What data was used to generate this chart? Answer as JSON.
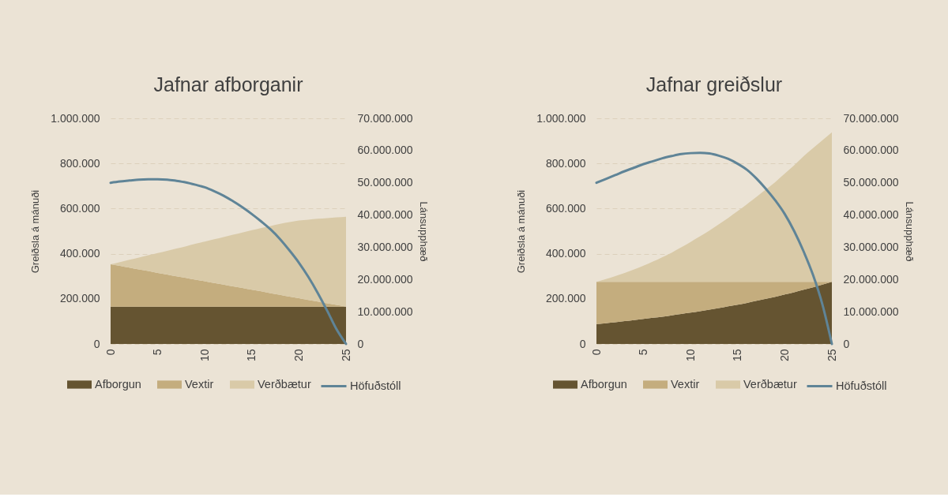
{
  "chart_data": [
    {
      "type": "area",
      "title": "Jafnar afborganir",
      "ylabel": "Greiðsla á mánuði",
      "y2label": "Lánsupphæð",
      "stacked": true,
      "x": [
        0,
        1,
        2,
        3,
        4,
        5,
        6,
        7,
        8,
        9,
        10,
        11,
        12,
        13,
        14,
        15,
        16,
        17,
        18,
        19,
        20,
        21,
        22,
        23,
        24,
        25
      ],
      "series": [
        {
          "name": "Afborgun",
          "color": "#655431",
          "values": [
            165000,
            165000,
            165000,
            165000,
            165000,
            165000,
            165000,
            165000,
            165000,
            165000,
            165000,
            165000,
            165000,
            165000,
            165000,
            165000,
            165000,
            165000,
            165000,
            165000,
            165000,
            165000,
            165000,
            165000,
            165000,
            165000
          ]
        },
        {
          "name": "Vextir",
          "color": "#c4ad7e",
          "values": [
            188000,
            181000,
            173000,
            165000,
            158000,
            150000,
            143000,
            135000,
            128000,
            120000,
            113000,
            105000,
            98000,
            90000,
            83000,
            75000,
            68000,
            60000,
            53000,
            45000,
            38000,
            30000,
            23000,
            15000,
            8000,
            0
          ]
        },
        {
          "name": "Verðbætur",
          "color": "#d9caa8",
          "values": [
            0,
            17000,
            35000,
            53000,
            70000,
            88000,
            105000,
            123000,
            140000,
            159000,
            176000,
            194000,
            211000,
            229000,
            246000,
            264000,
            281000,
            298000,
            314000,
            330000,
            344000,
            356000,
            367000,
            378000,
            388000,
            399000
          ]
        },
        {
          "name": "Höfuðstóll",
          "type": "line",
          "axis": "y2",
          "color": "#5f8497",
          "values": [
            50000000,
            50400000,
            50700000,
            51000000,
            51100000,
            51100000,
            51000000,
            50600000,
            50100000,
            49400000,
            48600000,
            47400000,
            46000000,
            44300000,
            42400000,
            40300000,
            38000000,
            35500000,
            32500000,
            29000000,
            25200000,
            20800000,
            15800000,
            10300000,
            4500000,
            0
          ]
        }
      ],
      "xlim": [
        0,
        25
      ],
      "xticks": [
        0,
        5,
        10,
        15,
        20,
        25
      ],
      "ylim": [
        0,
        1000000
      ],
      "yticks": [
        0,
        {
          "value": 200000,
          "label": "200.000"
        },
        {
          "value": 400000,
          "label": "400.000"
        },
        {
          "value": 600000,
          "label": "600.000"
        },
        {
          "value": 800000,
          "label": "800.000"
        },
        {
          "value": 1000000,
          "label": "1.000.000"
        }
      ],
      "y2lim": [
        0,
        70000000
      ],
      "y2ticks": [
        0,
        {
          "value": 10000000,
          "label": "10.000.000"
        },
        {
          "value": 20000000,
          "label": "20.000.000"
        },
        {
          "value": 30000000,
          "label": "30.000.000"
        },
        {
          "value": 40000000,
          "label": "40.000.000"
        },
        {
          "value": 50000000,
          "label": "50.000.000"
        },
        {
          "value": 60000000,
          "label": "60.000.000"
        },
        {
          "value": 70000000,
          "label": "70.000.000"
        }
      ],
      "grid": "y",
      "legend": "bottom"
    },
    {
      "type": "area",
      "title": "Jafnar greiðslur",
      "ylabel": "Greiðsla á mánuði",
      "y2label": "Lánsupphæð",
      "stacked": true,
      "x": [
        0,
        1,
        2,
        3,
        4,
        5,
        6,
        7,
        8,
        9,
        10,
        11,
        12,
        13,
        14,
        15,
        16,
        17,
        18,
        19,
        20,
        21,
        22,
        23,
        24,
        25
      ],
      "series": [
        {
          "name": "Afborgun",
          "color": "#655431",
          "values": [
            88000,
            92000,
            96000,
            101000,
            106000,
            111000,
            116000,
            121000,
            127000,
            133000,
            139000,
            145000,
            152000,
            159000,
            167000,
            174000,
            182000,
            191000,
            200000,
            209000,
            219000,
            229000,
            240000,
            251000,
            263000,
            275000
          ]
        },
        {
          "name": "Vextir",
          "color": "#c4ad7e",
          "values": [
            187000,
            183000,
            179000,
            174000,
            169000,
            164000,
            159000,
            154000,
            148000,
            142000,
            136000,
            130000,
            123000,
            116000,
            108000,
            101000,
            93000,
            84000,
            75000,
            66000,
            56000,
            46000,
            35000,
            24000,
            12000,
            0
          ]
        },
        {
          "name": "Verðbætur",
          "color": "#d9caa8",
          "values": [
            0,
            13000,
            26000,
            40000,
            55000,
            72000,
            90000,
            110000,
            130000,
            153000,
            177000,
            202000,
            228000,
            256000,
            284000,
            314000,
            345000,
            377000,
            410000,
            443000,
            480000,
            517000,
            557000,
            593000,
            628000,
            663000
          ]
        },
        {
          "name": "Höfuðstóll",
          "type": "line",
          "axis": "y2",
          "color": "#5f8497",
          "values": [
            50000000,
            51200000,
            52400000,
            53600000,
            54700000,
            55800000,
            56700000,
            57600000,
            58300000,
            58900000,
            59200000,
            59300000,
            59100000,
            58400000,
            57400000,
            55900000,
            54000000,
            51300000,
            48100000,
            44500000,
            40300000,
            35000000,
            28700000,
            21400000,
            12200000,
            0
          ]
        }
      ],
      "xlim": [
        0,
        25
      ],
      "xticks": [
        0,
        5,
        10,
        15,
        20,
        25
      ],
      "ylim": [
        0,
        1000000
      ],
      "yticks": [
        0,
        {
          "value": 200000,
          "label": "200.000"
        },
        {
          "value": 400000,
          "label": "400.000"
        },
        {
          "value": 600000,
          "label": "600.000"
        },
        {
          "value": 800000,
          "label": "800.000"
        },
        {
          "value": 1000000,
          "label": "1.000.000"
        }
      ],
      "y2lim": [
        0,
        70000000
      ],
      "y2ticks": [
        0,
        {
          "value": 10000000,
          "label": "10.000.000"
        },
        {
          "value": 20000000,
          "label": "20.000.000"
        },
        {
          "value": 30000000,
          "label": "30.000.000"
        },
        {
          "value": 40000000,
          "label": "40.000.000"
        },
        {
          "value": 50000000,
          "label": "50.000.000"
        },
        {
          "value": 60000000,
          "label": "60.000.000"
        },
        {
          "value": 70000000,
          "label": "70.000.000"
        }
      ],
      "grid": "y",
      "legend": "bottom"
    }
  ]
}
